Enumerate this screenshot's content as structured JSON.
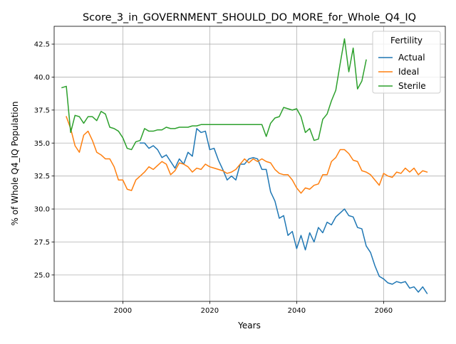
{
  "chart_data": {
    "type": "line",
    "title": "Score_3_in_GOVERNMENT_SHOULD_DO_MORE_for_Whole_Q4_IQ",
    "xlabel": "Years",
    "ylabel": "% of Whole Q4_IQ Population",
    "xlim": [
      1984.2,
      2074.2
    ],
    "ylim": [
      23.0,
      43.85
    ],
    "x_ticks": [
      2000,
      2020,
      2040,
      2060
    ],
    "x_tick_labels": [
      "2000",
      "2020",
      "2040",
      "2060"
    ],
    "y_ticks": [
      25.0,
      27.5,
      30.0,
      32.5,
      35.0,
      37.5,
      40.0,
      42.5
    ],
    "y_tick_labels": [
      "25.0",
      "27.5",
      "30.0",
      "32.5",
      "35.0",
      "37.5",
      "40.0",
      "42.5"
    ],
    "grid": true,
    "legend": {
      "title": "Fertility",
      "position": "top-right"
    },
    "series": [
      {
        "name": "Actual",
        "color": "#1f77b4",
        "x": [
          2004,
          2005,
          2006,
          2007,
          2008,
          2009,
          2010,
          2011,
          2012,
          2013,
          2014,
          2015,
          2016,
          2017,
          2018,
          2019,
          2020,
          2021,
          2022,
          2023,
          2024,
          2025,
          2026,
          2027,
          2028,
          2029,
          2030,
          2031,
          2032,
          2033,
          2034,
          2035,
          2036,
          2037,
          2038,
          2039,
          2040,
          2041,
          2042,
          2043,
          2044,
          2045,
          2046,
          2047,
          2048,
          2049,
          2050,
          2051,
          2052,
          2053,
          2054,
          2055,
          2056,
          2057,
          2058,
          2059,
          2060,
          2061,
          2062,
          2063,
          2064,
          2065,
          2066,
          2067,
          2068,
          2069,
          2070
        ],
        "y": [
          35.0,
          35.0,
          34.6,
          34.8,
          34.5,
          33.9,
          34.1,
          33.6,
          33.1,
          33.8,
          33.4,
          34.3,
          34.0,
          36.1,
          35.8,
          35.9,
          34.5,
          34.6,
          33.7,
          33.0,
          32.2,
          32.5,
          32.2,
          33.4,
          33.4,
          33.8,
          33.9,
          33.8,
          33.0,
          33.0,
          31.3,
          30.6,
          29.3,
          29.5,
          28.0,
          28.3,
          27.0,
          28.0,
          26.9,
          28.2,
          27.5,
          28.6,
          28.2,
          29.0,
          28.8,
          29.4,
          29.7,
          30.0,
          29.5,
          29.4,
          28.6,
          28.5,
          27.2,
          26.7,
          25.7,
          24.9,
          24.7,
          24.4,
          24.3,
          24.5,
          24.4,
          24.5,
          24.0,
          24.1,
          23.7,
          24.1,
          23.6
        ]
      },
      {
        "name": "Ideal",
        "color": "#ff7f0e",
        "x": [
          1987,
          1988,
          1989,
          1990,
          1991,
          1992,
          1993,
          1994,
          1995,
          1996,
          1997,
          1998,
          1999,
          2000,
          2001,
          2002,
          2003,
          2004,
          2005,
          2006,
          2007,
          2008,
          2009,
          2010,
          2011,
          2012,
          2013,
          2014,
          2015,
          2016,
          2017,
          2018,
          2019,
          2020,
          2021,
          2022,
          2023,
          2024,
          2025,
          2026,
          2027,
          2028,
          2029,
          2030,
          2031,
          2032,
          2033,
          2034,
          2035,
          2036,
          2037,
          2038,
          2039,
          2040,
          2041,
          2042,
          2043,
          2044,
          2045,
          2046,
          2047,
          2048,
          2049,
          2050,
          2051,
          2052,
          2053,
          2054,
          2055,
          2056,
          2057,
          2058,
          2059,
          2060,
          2061,
          2062,
          2063,
          2064,
          2065,
          2066,
          2067,
          2068,
          2069,
          2070
        ],
        "y": [
          37.0,
          36.1,
          34.8,
          34.3,
          35.6,
          35.9,
          35.2,
          34.3,
          34.1,
          33.8,
          33.8,
          33.2,
          32.2,
          32.2,
          31.5,
          31.4,
          32.2,
          32.5,
          32.8,
          33.2,
          33.0,
          33.3,
          33.6,
          33.4,
          32.6,
          32.9,
          33.5,
          33.4,
          33.2,
          32.8,
          33.1,
          33.0,
          33.4,
          33.2,
          33.1,
          33.0,
          32.9,
          32.7,
          32.8,
          33.0,
          33.4,
          33.8,
          33.5,
          33.8,
          33.6,
          33.8,
          33.6,
          33.5,
          33.0,
          32.7,
          32.6,
          32.6,
          32.2,
          31.6,
          31.2,
          31.6,
          31.5,
          31.8,
          31.9,
          32.6,
          32.6,
          33.6,
          33.9,
          34.5,
          34.5,
          34.2,
          33.7,
          33.6,
          32.9,
          32.8,
          32.6,
          32.2,
          31.8,
          32.7,
          32.5,
          32.4,
          32.8,
          32.7,
          33.1,
          32.8,
          33.1,
          32.6,
          32.9,
          32.8
        ]
      },
      {
        "name": "Sterile",
        "color": "#2ca02c",
        "x": [
          1986,
          1987,
          1988,
          1989,
          1990,
          1991,
          1992,
          1993,
          1994,
          1995,
          1996,
          1997,
          1998,
          1999,
          2000,
          2001,
          2002,
          2003,
          2004,
          2005,
          2006,
          2007,
          2008,
          2009,
          2010,
          2011,
          2012,
          2013,
          2014,
          2015,
          2016,
          2017,
          2018,
          2019,
          2020,
          2021,
          2022,
          2023,
          2024,
          2025,
          2026,
          2027,
          2028,
          2029,
          2030,
          2031,
          2032,
          2033,
          2034,
          2035,
          2036,
          2037,
          2038,
          2039,
          2040,
          2041,
          2042,
          2043,
          2044,
          2045,
          2046,
          2047,
          2048,
          2049,
          2050,
          2051,
          2052,
          2053,
          2054,
          2055,
          2056
        ],
        "y": [
          39.2,
          39.3,
          35.8,
          37.1,
          37.0,
          36.5,
          37.0,
          37.0,
          36.7,
          37.4,
          37.2,
          36.2,
          36.1,
          35.9,
          35.4,
          34.6,
          34.5,
          35.1,
          35.2,
          36.1,
          35.9,
          35.9,
          36.0,
          36.0,
          36.2,
          36.1,
          36.1,
          36.2,
          36.2,
          36.2,
          36.3,
          36.3,
          36.4,
          36.4,
          36.4,
          36.4,
          36.4,
          36.4,
          36.4,
          36.4,
          36.4,
          36.4,
          36.4,
          36.4,
          36.4,
          36.4,
          36.4,
          35.5,
          36.5,
          36.9,
          37.0,
          37.7,
          37.6,
          37.5,
          37.6,
          37.0,
          35.8,
          36.1,
          35.2,
          35.3,
          36.8,
          37.2,
          38.2,
          39.0,
          41.0,
          42.9,
          40.4,
          42.2,
          39.1,
          39.7,
          41.3
        ]
      }
    ]
  }
}
